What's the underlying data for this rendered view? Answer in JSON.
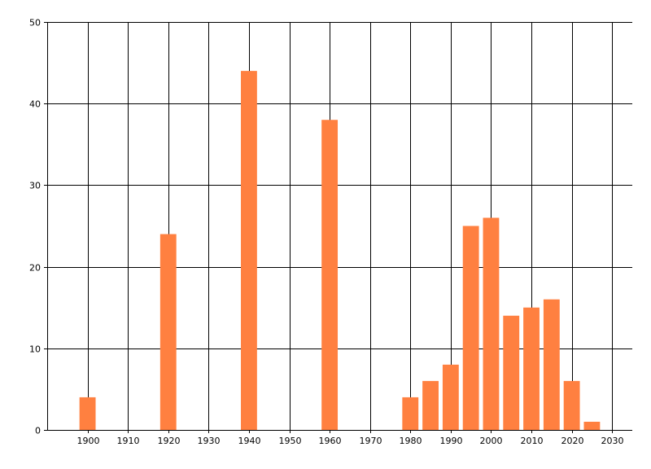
{
  "chart_data": {
    "type": "bar",
    "title": "",
    "xlabel": "",
    "ylabel": "",
    "grid": true,
    "xlim": [
      1890,
      2035
    ],
    "ylim": [
      0,
      50
    ],
    "x_ticks": [
      1900,
      1910,
      1920,
      1930,
      1940,
      1950,
      1960,
      1970,
      1980,
      1990,
      2000,
      2010,
      2020,
      2030
    ],
    "y_ticks": [
      0,
      10,
      20,
      30,
      40,
      50
    ],
    "bar_width_years": 4,
    "bar_color": "#FF8040",
    "x": [
      1900,
      1920,
      1940,
      1960,
      1980,
      1985,
      1990,
      1995,
      2000,
      2005,
      2010,
      2015,
      2020,
      2025
    ],
    "values": [
      4,
      24,
      44,
      38,
      4,
      6,
      8,
      25,
      26,
      14,
      15,
      16,
      6,
      1
    ]
  }
}
